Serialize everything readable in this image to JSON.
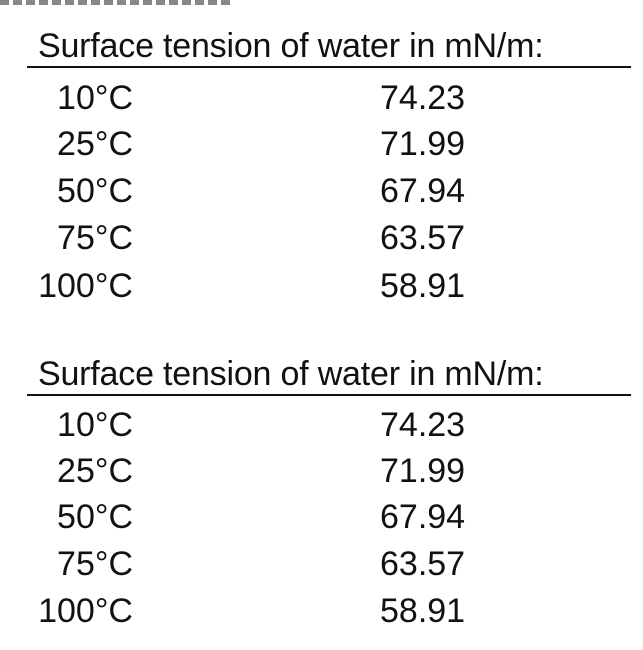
{
  "tables": [
    {
      "title": "Surface tension of water in mN/m:",
      "rows": [
        {
          "temperature": "10°C",
          "value": "74.23"
        },
        {
          "temperature": "25°C",
          "value": "71.99"
        },
        {
          "temperature": "50°C",
          "value": "67.94"
        },
        {
          "temperature": "75°C",
          "value": "63.57"
        },
        {
          "temperature": "100°C",
          "value": "58.91"
        }
      ]
    },
    {
      "title": "Surface tension of water in mN/m:",
      "rows": [
        {
          "temperature": "10°C",
          "value": "74.23"
        },
        {
          "temperature": "25°C",
          "value": "71.99"
        },
        {
          "temperature": "50°C",
          "value": "67.94"
        },
        {
          "temperature": "75°C",
          "value": "63.57"
        },
        {
          "temperature": "100°C",
          "value": "58.91"
        }
      ]
    }
  ]
}
